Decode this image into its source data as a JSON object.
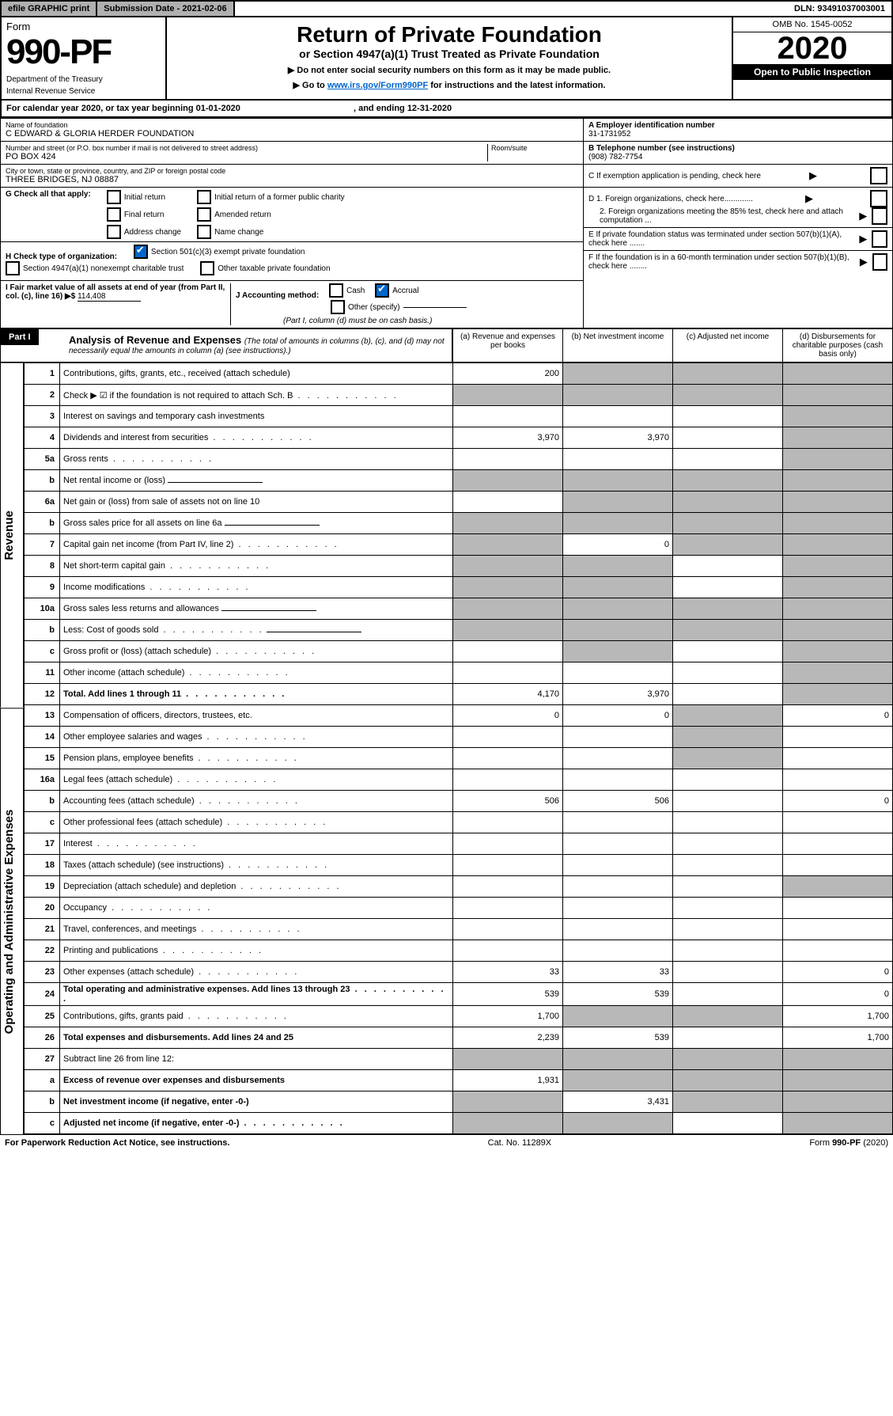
{
  "topbar": {
    "efile": "efile GRAPHIC print",
    "sub": "Submission Date - 2021-02-06",
    "dln": "DLN: 93491037003001"
  },
  "hdr": {
    "form": "Form",
    "no": "990-PF",
    "dept": "Department of the Treasury",
    "irs": "Internal Revenue Service",
    "title": "Return of Private Foundation",
    "subtitle": "or Section 4947(a)(1) Trust Treated as Private Foundation",
    "i1": "▶ Do not enter social security numbers on this form as it may be made public.",
    "i2": "▶ Go to ",
    "link": "www.irs.gov/Form990PF",
    "i3": " for instructions and the latest information.",
    "omb": "OMB No. 1545-0052",
    "year": "2020",
    "open": "Open to Public Inspection"
  },
  "cal": {
    "a": "For calendar year 2020, or tax year beginning 01-01-2020",
    "b": ", and ending 12-31-2020"
  },
  "info": {
    "name_l": "Name of foundation",
    "name": "C EDWARD & GLORIA HERDER FOUNDATION",
    "addr_l": "Number and street (or P.O. box number if mail is not delivered to street address)",
    "room_l": "Room/suite",
    "addr": "PO BOX 424",
    "city_l": "City or town, state or province, country, and ZIP or foreign postal code",
    "city": "THREE BRIDGES, NJ  08887",
    "a_l": "A Employer identification number",
    "a": "31-1731952",
    "b_l": "B Telephone number (see instructions)",
    "b": "(908) 782-7754",
    "c": "C  If exemption application is pending, check here",
    "d1": "D 1. Foreign organizations, check here.............",
    "d2": "2. Foreign organizations meeting the 85% test, check here and attach computation ...",
    "e": "E  If private foundation status was terminated under section 507(b)(1)(A), check here .......",
    "f": "F  If the foundation is in a 60-month termination under section 507(b)(1)(B), check here ........"
  },
  "g": {
    "lbl": "G Check all that apply:",
    "o": [
      "Initial return",
      "Final return",
      "Address change",
      "Initial return of a former public charity",
      "Amended return",
      "Name change"
    ]
  },
  "h": {
    "lbl": "H Check type of organization:",
    "o": [
      "Section 501(c)(3) exempt private foundation",
      "Section 4947(a)(1) nonexempt charitable trust",
      "Other taxable private foundation"
    ]
  },
  "i": {
    "lbl": "I Fair market value of all assets at end of year (from Part II, col. (c), line 16) ▶$ ",
    "val": "114,408"
  },
  "j": {
    "lbl": "J Accounting method:",
    "o": [
      "Cash",
      "Accrual",
      "Other (specify)"
    ],
    "note": "(Part I, column (d) must be on cash basis.)"
  },
  "part1": {
    "hdr": "Part I",
    "title": "Analysis of Revenue and Expenses ",
    "note": "(The total of amounts in columns (b), (c), and (d) may not necessarily equal the amounts in column (a) (see instructions).)",
    "cols": [
      "(a)   Revenue and expenses per books",
      "(b)  Net investment income",
      "(c)  Adjusted net income",
      "(d)  Disbursements for charitable purposes (cash basis only)"
    ]
  },
  "sections": {
    "rev": "Revenue",
    "ope": "Operating and Administrative Expenses"
  },
  "rows": [
    {
      "n": "1",
      "d": "Contributions, gifts, grants, etc., received (attach schedule)",
      "a": "200",
      "g": [
        0,
        1,
        1,
        1
      ]
    },
    {
      "n": "2",
      "d": "Check ▶ ☑ if the foundation is not required to attach Sch. B",
      "g": [
        1,
        1,
        1,
        1
      ],
      "dots": 1
    },
    {
      "n": "3",
      "d": "Interest on savings and temporary cash investments",
      "g": [
        0,
        0,
        0,
        1
      ]
    },
    {
      "n": "4",
      "d": "Dividends and interest from securities",
      "a": "3,970",
      "b": "3,970",
      "g": [
        0,
        0,
        0,
        1
      ],
      "dots": 1
    },
    {
      "n": "5a",
      "d": "Gross rents",
      "g": [
        0,
        0,
        0,
        1
      ],
      "dots": 1
    },
    {
      "n": "b",
      "d": "Net rental income or (loss)",
      "g": [
        1,
        1,
        1,
        1
      ],
      "line": 1
    },
    {
      "n": "6a",
      "d": "Net gain or (loss) from sale of assets not on line 10",
      "g": [
        0,
        1,
        1,
        1
      ]
    },
    {
      "n": "b",
      "d": "Gross sales price for all assets on line 6a",
      "g": [
        1,
        1,
        1,
        1
      ],
      "line": 1
    },
    {
      "n": "7",
      "d": "Capital gain net income (from Part IV, line 2)",
      "b": "0",
      "g": [
        1,
        0,
        1,
        1
      ],
      "dots": 1
    },
    {
      "n": "8",
      "d": "Net short-term capital gain",
      "g": [
        1,
        1,
        0,
        1
      ],
      "dots": 1
    },
    {
      "n": "9",
      "d": "Income modifications",
      "g": [
        1,
        1,
        0,
        1
      ],
      "dots": 1
    },
    {
      "n": "10a",
      "d": "Gross sales less returns and allowances",
      "g": [
        1,
        1,
        1,
        1
      ],
      "line": 1
    },
    {
      "n": "b",
      "d": "Less: Cost of goods sold",
      "g": [
        1,
        1,
        1,
        1
      ],
      "line": 1,
      "dots": 1
    },
    {
      "n": "c",
      "d": "Gross profit or (loss) (attach schedule)",
      "g": [
        0,
        1,
        0,
        1
      ],
      "dots": 1
    },
    {
      "n": "11",
      "d": "Other income (attach schedule)",
      "g": [
        0,
        0,
        0,
        1
      ],
      "dots": 1
    },
    {
      "n": "12",
      "d": "Total. Add lines 1 through 11",
      "a": "4,170",
      "b": "3,970",
      "g": [
        0,
        0,
        0,
        1
      ],
      "bold": 1,
      "dots": 1
    },
    {
      "n": "13",
      "d": "Compensation of officers, directors, trustees, etc.",
      "a": "0",
      "b": "0",
      "dd": "0",
      "g": [
        0,
        0,
        1,
        0
      ]
    },
    {
      "n": "14",
      "d": "Other employee salaries and wages",
      "g": [
        0,
        0,
        1,
        0
      ],
      "dots": 1
    },
    {
      "n": "15",
      "d": "Pension plans, employee benefits",
      "g": [
        0,
        0,
        1,
        0
      ],
      "dots": 1
    },
    {
      "n": "16a",
      "d": "Legal fees (attach schedule)",
      "g": [
        0,
        0,
        0,
        0
      ],
      "dots": 1
    },
    {
      "n": "b",
      "d": "Accounting fees (attach schedule)",
      "a": "506",
      "b": "506",
      "dd": "0",
      "g": [
        0,
        0,
        0,
        0
      ],
      "dots": 1
    },
    {
      "n": "c",
      "d": "Other professional fees (attach schedule)",
      "g": [
        0,
        0,
        0,
        0
      ],
      "dots": 1
    },
    {
      "n": "17",
      "d": "Interest",
      "g": [
        0,
        0,
        0,
        0
      ],
      "dots": 1
    },
    {
      "n": "18",
      "d": "Taxes (attach schedule) (see instructions)",
      "g": [
        0,
        0,
        0,
        0
      ],
      "dots": 1
    },
    {
      "n": "19",
      "d": "Depreciation (attach schedule) and depletion",
      "g": [
        0,
        0,
        0,
        1
      ],
      "dots": 1
    },
    {
      "n": "20",
      "d": "Occupancy",
      "g": [
        0,
        0,
        0,
        0
      ],
      "dots": 1
    },
    {
      "n": "21",
      "d": "Travel, conferences, and meetings",
      "g": [
        0,
        0,
        0,
        0
      ],
      "dots": 1
    },
    {
      "n": "22",
      "d": "Printing and publications",
      "g": [
        0,
        0,
        0,
        0
      ],
      "dots": 1
    },
    {
      "n": "23",
      "d": "Other expenses (attach schedule)",
      "a": "33",
      "b": "33",
      "dd": "0",
      "g": [
        0,
        0,
        0,
        0
      ],
      "dots": 1
    },
    {
      "n": "24",
      "d": "Total operating and administrative expenses. Add lines 13 through 23",
      "a": "539",
      "b": "539",
      "dd": "0",
      "g": [
        0,
        0,
        0,
        0
      ],
      "bold": 1,
      "dots": 1
    },
    {
      "n": "25",
      "d": "Contributions, gifts, grants paid",
      "a": "1,700",
      "dd": "1,700",
      "g": [
        0,
        1,
        1,
        0
      ],
      "dots": 1
    },
    {
      "n": "26",
      "d": "Total expenses and disbursements. Add lines 24 and 25",
      "a": "2,239",
      "b": "539",
      "dd": "1,700",
      "g": [
        0,
        0,
        0,
        0
      ],
      "bold": 1
    },
    {
      "n": "27",
      "d": "Subtract line 26 from line 12:",
      "g": [
        1,
        1,
        1,
        1
      ]
    },
    {
      "n": "a",
      "d": "Excess of revenue over expenses and disbursements",
      "a": "1,931",
      "g": [
        0,
        1,
        1,
        1
      ],
      "bold": 1
    },
    {
      "n": "b",
      "d": "Net investment income (if negative, enter -0-)",
      "b": "3,431",
      "g": [
        1,
        0,
        1,
        1
      ],
      "bold": 1
    },
    {
      "n": "c",
      "d": "Adjusted net income (if negative, enter -0-)",
      "g": [
        1,
        1,
        0,
        1
      ],
      "bold": 1,
      "dots": 1
    }
  ],
  "footer": {
    "l": "For Paperwork Reduction Act Notice, see instructions.",
    "c": "Cat. No. 11289X",
    "r": "Form 990-PF (2020)"
  }
}
